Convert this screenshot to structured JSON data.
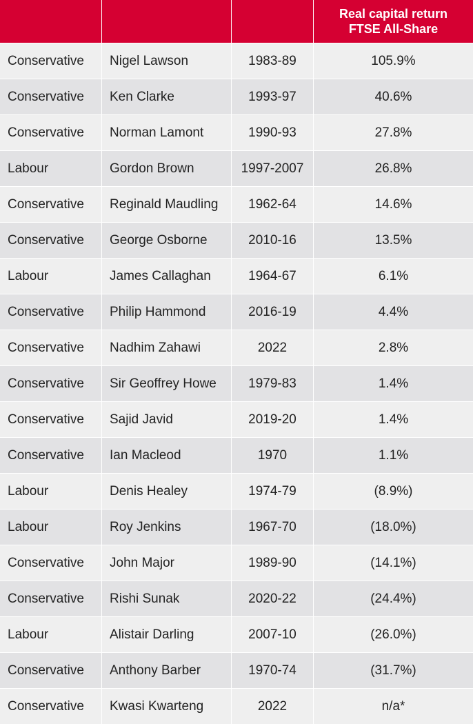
{
  "table": {
    "headers": [
      "",
      "",
      "",
      "Real capital return FTSE All-Share"
    ],
    "header_lines": [
      "Real capital return",
      "FTSE All-Share"
    ],
    "rows": [
      {
        "party": "Conservative",
        "name": "Nigel Lawson",
        "years": "1983-89",
        "return": "105.9%"
      },
      {
        "party": "Conservative",
        "name": "Ken Clarke",
        "years": "1993-97",
        "return": "40.6%"
      },
      {
        "party": "Conservative",
        "name": "Norman Lamont",
        "years": "1990-93",
        "return": "27.8%"
      },
      {
        "party": "Labour",
        "name": "Gordon Brown",
        "years": "1997-2007",
        "return": "26.8%"
      },
      {
        "party": "Conservative",
        "name": "Reginald Maudling",
        "years": "1962-64",
        "return": "14.6%"
      },
      {
        "party": "Conservative",
        "name": "George Osborne",
        "years": "2010-16",
        "return": "13.5%"
      },
      {
        "party": "Labour",
        "name": "James Callaghan",
        "years": "1964-67",
        "return": "6.1%"
      },
      {
        "party": "Conservative",
        "name": "Philip Hammond",
        "years": "2016-19",
        "return": "4.4%"
      },
      {
        "party": "Conservative",
        "name": "Nadhim Zahawi",
        "years": "2022",
        "return": "2.8%"
      },
      {
        "party": "Conservative",
        "name": "Sir Geoffrey Howe",
        "years": "1979-83",
        "return": "1.4%"
      },
      {
        "party": "Conservative",
        "name": "Sajid Javid",
        "years": "2019-20",
        "return": "1.4%"
      },
      {
        "party": "Conservative",
        "name": "Ian Macleod",
        "years": "1970",
        "return": "1.1%"
      },
      {
        "party": "Labour",
        "name": "Denis Healey",
        "years": "1974-79",
        "return": "(8.9%)"
      },
      {
        "party": "Labour",
        "name": "Roy Jenkins",
        "years": "1967-70",
        "return": "(18.0%)"
      },
      {
        "party": "Conservative",
        "name": "John Major",
        "years": "1989-90",
        "return": "(14.1%)"
      },
      {
        "party": "Conservative",
        "name": "Rishi Sunak",
        "years": "2020-22",
        "return": "(24.4%)"
      },
      {
        "party": "Labour",
        "name": "Alistair Darling",
        "years": "2007-10",
        "return": "(26.0%)"
      },
      {
        "party": "Conservative",
        "name": "Anthony Barber",
        "years": "1970-74",
        "return": "(31.7%)"
      },
      {
        "party": "Conservative",
        "name": "Kwasi Kwarteng",
        "years": "2022",
        "return": "n/a*"
      }
    ]
  },
  "colors": {
    "header_bg": "#d50032",
    "header_text": "#ffffff",
    "row_odd": "#efefef",
    "row_even": "#e2e2e4"
  }
}
